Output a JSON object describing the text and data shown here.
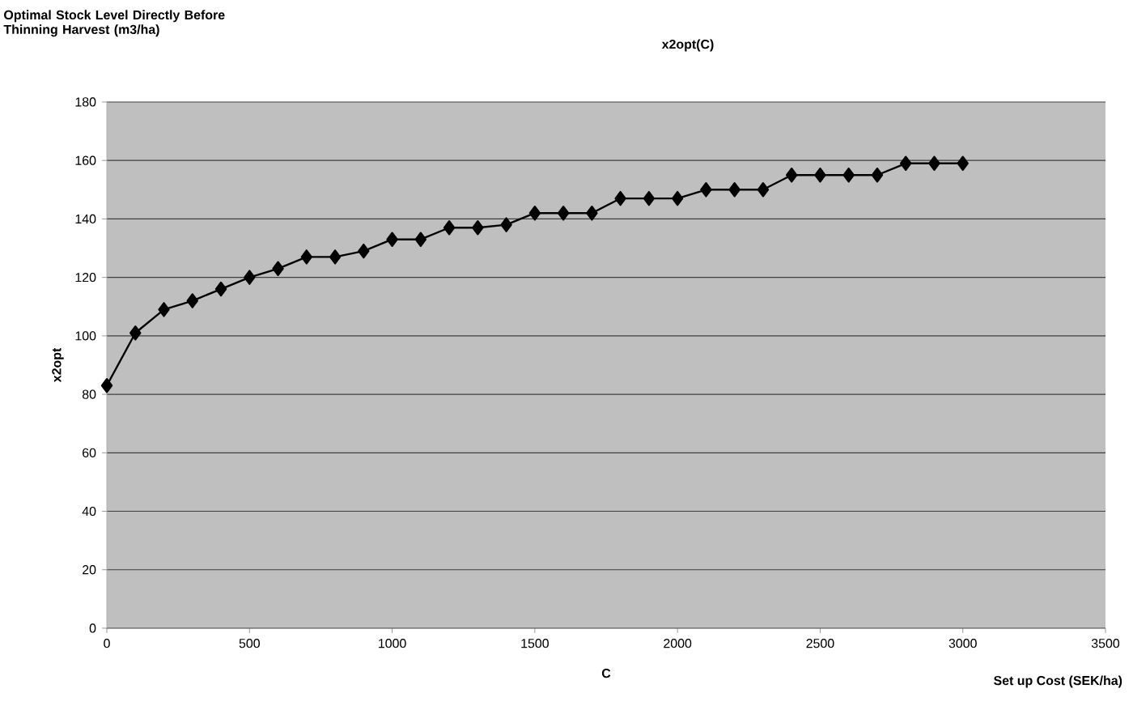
{
  "chart_data": {
    "type": "line",
    "title": "x2opt(C)",
    "xlabel": "C",
    "ylabel": "x2opt",
    "annotations": [
      "Optimal Stock Level Directly Before Thinning Harvest (m3/ha)",
      "Set up Cost (SEK/ha)"
    ],
    "x": [
      0,
      100,
      200,
      300,
      400,
      500,
      600,
      700,
      800,
      900,
      1000,
      1100,
      1200,
      1300,
      1400,
      1500,
      1600,
      1700,
      1800,
      1900,
      2000,
      2100,
      2200,
      2300,
      2400,
      2500,
      2600,
      2700,
      2800,
      2900,
      3000
    ],
    "series": [
      {
        "color": "#000000",
        "values": [
          83,
          101,
          109,
          112,
          116,
          120,
          123,
          127,
          127,
          129,
          133,
          133,
          137,
          137,
          138,
          142,
          142,
          142,
          147,
          147,
          147,
          150,
          150,
          150,
          155,
          155,
          155,
          155,
          159,
          159,
          159
        ]
      }
    ],
    "xlim": [
      0,
      3500
    ],
    "ylim": [
      0,
      180
    ],
    "xticks": [
      0,
      500,
      1000,
      1500,
      2000,
      2500,
      3000,
      3500
    ],
    "yticks": [
      0,
      20,
      40,
      60,
      80,
      100,
      120,
      140,
      160,
      180
    ],
    "grid": "y",
    "marker": "diamond",
    "line_style": "solid"
  }
}
